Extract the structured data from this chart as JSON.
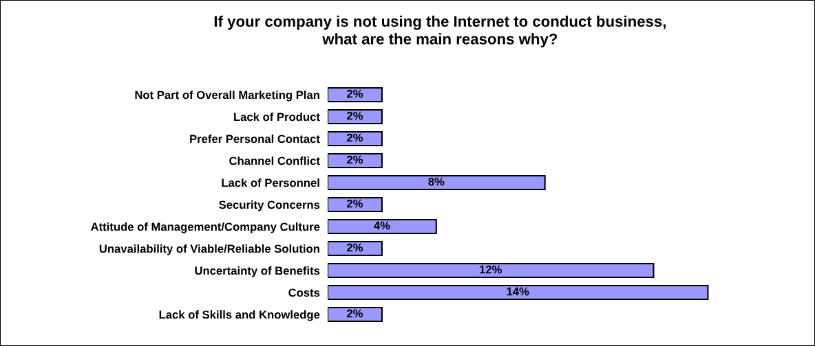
{
  "chart_data": {
    "type": "bar",
    "orientation": "horizontal",
    "title": "If your company is not using the Internet to conduct business,\nwhat are the main reasons why?",
    "categories": [
      "Not Part of Overall Marketing Plan",
      "Lack of Product",
      "Prefer Personal Contact",
      "Channel Conflict",
      "Lack of Personnel",
      "Security Concerns",
      "Attitude of Management/Company Culture",
      "Unavailability of Viable/Reliable Solution",
      "Uncertainty of Benefits",
      "Costs",
      "Lack of Skills and Knowledge"
    ],
    "values": [
      2,
      2,
      2,
      2,
      8,
      2,
      4,
      2,
      12,
      14,
      2
    ],
    "value_labels": [
      "2%",
      "2%",
      "2%",
      "2%",
      "8%",
      "2%",
      "4%",
      "2%",
      "12%",
      "14%",
      "2%"
    ],
    "color": "#9999ff",
    "grid": false,
    "legend": false,
    "tick_labels": "y"
  }
}
